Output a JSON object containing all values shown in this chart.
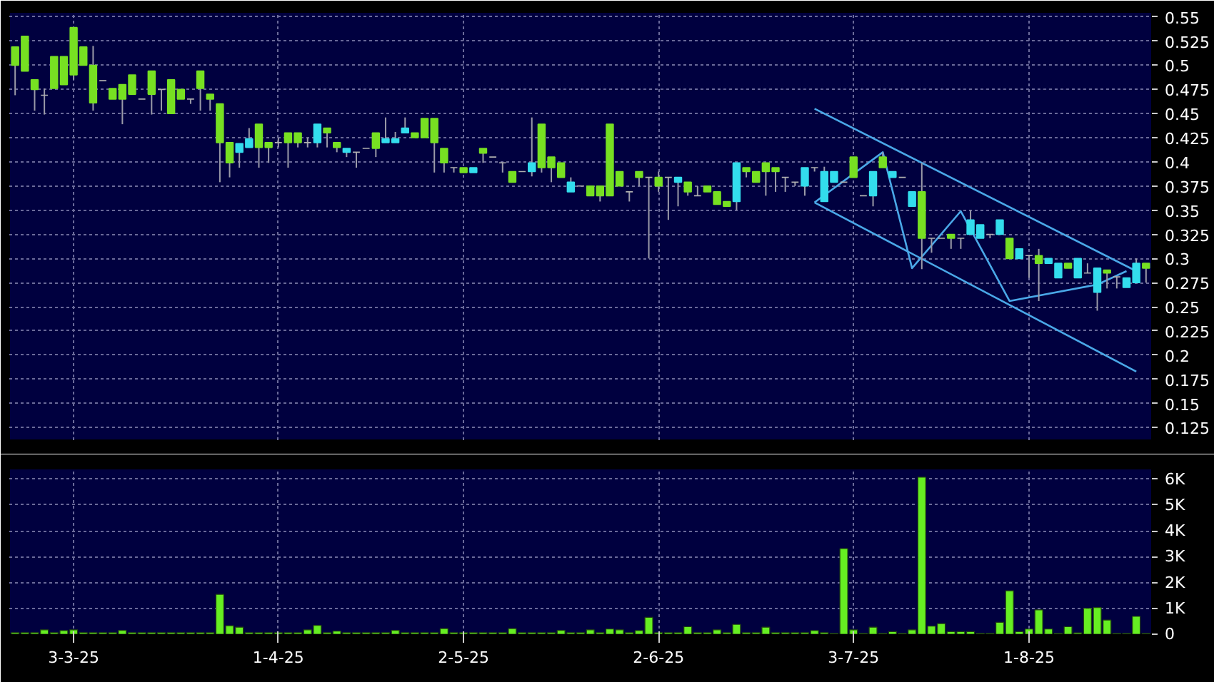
{
  "chart_data": [
    {
      "type": "candlestick",
      "categories": [
        null,
        null,
        null,
        null,
        null,
        null,
        null,
        null,
        null,
        null,
        null,
        null,
        null,
        null,
        null,
        null,
        null,
        null,
        null,
        null,
        null,
        null,
        null,
        null,
        null,
        null,
        null,
        null,
        null,
        null,
        null,
        null,
        null,
        null,
        null,
        null,
        null,
        null,
        null,
        null,
        null,
        null,
        null,
        null,
        null,
        null,
        null,
        null,
        null,
        null,
        null,
        null,
        null,
        null,
        null,
        null,
        null,
        null,
        null,
        null,
        null,
        null,
        null,
        null,
        null,
        null,
        null,
        null,
        null,
        null,
        null,
        null,
        null,
        null,
        null,
        null,
        null,
        null,
        null,
        null,
        null,
        null,
        null,
        null,
        null,
        null,
        null,
        null,
        null,
        null,
        null,
        null,
        null,
        null,
        null,
        null,
        null,
        null,
        null,
        null,
        null,
        null,
        null,
        null,
        null,
        null,
        null,
        null,
        null,
        null,
        null,
        null,
        null,
        null,
        null,
        null,
        null
      ],
      "ohlc": [
        [
          0.519,
          0.519,
          0.469,
          0.5
        ],
        [
          0.53,
          0.53,
          0.494,
          0.494
        ],
        [
          0.485,
          0.485,
          0.453,
          0.475
        ],
        [
          0.469,
          0.476,
          0.449,
          0.469
        ],
        [
          0.509,
          0.509,
          0.476,
          0.476
        ],
        [
          0.509,
          0.509,
          0.48,
          0.48
        ],
        [
          0.539,
          0.539,
          0.485,
          0.49
        ],
        [
          0.519,
          0.519,
          0.5,
          0.5
        ],
        [
          0.5,
          0.52,
          0.453,
          0.461
        ],
        [
          0.484,
          0.484,
          0.484,
          0.484
        ],
        [
          0.476,
          0.476,
          0.465,
          0.465
        ],
        [
          0.48,
          0.48,
          0.439,
          0.465
        ],
        [
          0.49,
          0.49,
          0.47,
          0.47
        ],
        [
          0.465,
          0.465,
          0.465,
          0.465
        ],
        [
          0.494,
          0.494,
          0.449,
          0.47
        ],
        [
          0.475,
          0.475,
          0.453,
          0.475
        ],
        [
          0.485,
          0.485,
          0.45,
          0.45
        ],
        [
          0.475,
          0.475,
          0.465,
          0.465
        ],
        [
          0.465,
          0.465,
          0.46,
          0.465
        ],
        [
          0.494,
          0.494,
          0.453,
          0.476
        ],
        [
          0.47,
          0.47,
          0.453,
          0.465
        ],
        [
          0.46,
          0.46,
          0.379,
          0.42
        ],
        [
          0.42,
          0.42,
          0.384,
          0.399
        ],
        [
          0.41,
          0.419,
          0.394,
          0.419
        ],
        [
          0.415,
          0.435,
          0.415,
          0.424
        ],
        [
          0.439,
          0.439,
          0.394,
          0.415
        ],
        [
          0.42,
          0.42,
          0.399,
          0.415
        ],
        [
          0.42,
          0.425,
          0.415,
          0.42
        ],
        [
          0.43,
          0.43,
          0.394,
          0.42
        ],
        [
          0.43,
          0.43,
          0.415,
          0.42
        ],
        [
          0.42,
          0.425,
          0.415,
          0.42
        ],
        [
          0.42,
          0.439,
          0.415,
          0.439
        ],
        [
          0.435,
          0.435,
          0.415,
          0.43
        ],
        [
          0.42,
          0.42,
          0.41,
          0.415
        ],
        [
          0.41,
          0.414,
          0.405,
          0.414
        ],
        [
          0.41,
          0.41,
          0.394,
          0.41
        ],
        [
          0.414,
          0.414,
          0.414,
          0.414
        ],
        [
          0.43,
          0.43,
          0.405,
          0.414
        ],
        [
          0.42,
          0.446,
          0.42,
          0.424
        ],
        [
          0.42,
          0.431,
          0.42,
          0.424
        ],
        [
          0.43,
          0.446,
          0.43,
          0.435
        ],
        [
          0.43,
          0.43,
          0.425,
          0.425
        ],
        [
          0.445,
          0.445,
          0.425,
          0.425
        ],
        [
          0.445,
          0.445,
          0.389,
          0.42
        ],
        [
          0.414,
          0.414,
          0.389,
          0.399
        ],
        [
          0.394,
          0.394,
          0.389,
          0.394
        ],
        [
          0.394,
          0.394,
          0.389,
          0.389
        ],
        [
          0.389,
          0.394,
          0.389,
          0.394
        ],
        [
          0.414,
          0.414,
          0.399,
          0.409
        ],
        [
          0.405,
          0.405,
          0.405,
          0.405
        ],
        [
          0.399,
          0.399,
          0.389,
          0.399
        ],
        [
          0.39,
          0.39,
          0.379,
          0.379
        ],
        [
          0.39,
          0.39,
          0.39,
          0.39
        ],
        [
          0.39,
          0.446,
          0.385,
          0.399
        ],
        [
          0.439,
          0.439,
          0.389,
          0.394
        ],
        [
          0.405,
          0.405,
          0.379,
          0.394
        ],
        [
          0.399,
          0.399,
          0.384,
          0.384
        ],
        [
          0.369,
          0.384,
          0.369,
          0.379
        ],
        [
          0.375,
          0.375,
          0.375,
          0.375
        ],
        [
          0.375,
          0.375,
          0.365,
          0.365
        ],
        [
          0.375,
          0.375,
          0.359,
          0.365
        ],
        [
          0.439,
          0.439,
          0.365,
          0.365
        ],
        [
          0.39,
          0.39,
          0.375,
          0.375
        ],
        [
          0.369,
          0.369,
          0.359,
          0.369
        ],
        [
          0.39,
          0.39,
          0.375,
          0.384
        ],
        [
          0.384,
          0.384,
          0.3,
          0.384
        ],
        [
          0.384,
          0.39,
          0.369,
          0.375
        ],
        [
          0.384,
          0.384,
          0.34,
          0.384
        ],
        [
          0.379,
          0.384,
          0.354,
          0.384
        ],
        [
          0.379,
          0.379,
          0.365,
          0.369
        ],
        [
          0.365,
          0.375,
          0.365,
          0.365
        ],
        [
          0.375,
          0.375,
          0.369,
          0.369
        ],
        [
          0.369,
          0.369,
          0.356,
          0.356
        ],
        [
          0.359,
          0.359,
          0.354,
          0.354
        ],
        [
          0.359,
          0.399,
          0.35,
          0.399
        ],
        [
          0.394,
          0.394,
          0.384,
          0.39
        ],
        [
          0.39,
          0.39,
          0.379,
          0.379
        ],
        [
          0.399,
          0.399,
          0.365,
          0.39
        ],
        [
          0.394,
          0.394,
          0.369,
          0.39
        ],
        [
          0.384,
          0.384,
          0.369,
          0.384
        ],
        [
          0.379,
          0.379,
          0.375,
          0.379
        ],
        [
          0.375,
          0.394,
          0.365,
          0.394
        ],
        [
          0.394,
          0.394,
          0.39,
          0.394
        ],
        [
          0.359,
          0.395,
          0.359,
          0.39
        ],
        [
          0.379,
          0.39,
          0.379,
          0.39
        ],
        [
          0.379,
          0.379,
          0.379,
          0.379
        ],
        [
          0.405,
          0.405,
          0.384,
          0.384
        ],
        [
          0.365,
          0.365,
          0.365,
          0.365
        ],
        [
          0.365,
          0.39,
          0.354,
          0.39
        ],
        [
          0.405,
          0.41,
          0.394,
          0.394
        ],
        [
          0.384,
          0.39,
          0.384,
          0.39
        ],
        [
          0.384,
          0.384,
          0.384,
          0.384
        ],
        [
          0.354,
          0.369,
          0.354,
          0.369
        ],
        [
          0.369,
          0.399,
          0.289,
          0.321
        ],
        [
          0.321,
          0.321,
          0.306,
          0.321
        ],
        [
          0.321,
          0.321,
          0.321,
          0.321
        ],
        [
          0.325,
          0.325,
          0.31,
          0.321
        ],
        [
          0.321,
          0.321,
          0.31,
          0.321
        ],
        [
          0.325,
          0.35,
          0.325,
          0.34
        ],
        [
          0.321,
          0.335,
          0.321,
          0.335
        ],
        [
          0.325,
          0.325,
          0.321,
          0.325
        ],
        [
          0.325,
          0.34,
          0.325,
          0.34
        ],
        [
          0.321,
          0.321,
          0.3,
          0.3
        ],
        [
          0.3,
          0.31,
          0.3,
          0.31
        ],
        [
          0.303,
          0.303,
          0.28,
          0.303
        ],
        [
          0.303,
          0.31,
          0.256,
          0.295
        ],
        [
          0.295,
          0.3,
          0.295,
          0.3
        ],
        [
          0.28,
          0.295,
          0.28,
          0.295
        ],
        [
          0.295,
          0.295,
          0.29,
          0.29
        ],
        [
          0.28,
          0.3,
          0.28,
          0.3
        ],
        [
          0.285,
          0.295,
          0.285,
          0.285
        ],
        [
          0.265,
          0.29,
          0.246,
          0.29
        ],
        [
          0.288,
          0.288,
          0.269,
          0.285
        ],
        [
          0.281,
          0.281,
          0.269,
          0.281
        ],
        [
          0.27,
          0.28,
          0.27,
          0.28
        ],
        [
          0.275,
          0.3,
          0.275,
          0.295
        ],
        [
          0.295,
          0.295,
          0.275,
          0.29
        ]
      ],
      "colors": [
        "#77e022",
        "#77e022",
        "#77e022",
        "#b0b0b0",
        "#77e022",
        "#77e022",
        "#77e022",
        "#77e022",
        "#77e022",
        "#b0b0b0",
        "#77e022",
        "#77e022",
        "#77e022",
        "#b0b0b0",
        "#77e022",
        "#b0b0b0",
        "#77e022",
        "#77e022",
        "#b0b0b0",
        "#77e022",
        "#77e022",
        "#77e022",
        "#77e022",
        "#33dded",
        "#33dded",
        "#77e022",
        "#77e022",
        "#b0b0b0",
        "#77e022",
        "#77e022",
        "#b0b0b0",
        "#33dded",
        "#77e022",
        "#77e022",
        "#33dded",
        "#b0b0b0",
        "#b0b0b0",
        "#77e022",
        "#33dded",
        "#33dded",
        "#33dded",
        "#77e022",
        "#77e022",
        "#77e022",
        "#77e022",
        "#b0b0b0",
        "#77e022",
        "#33dded",
        "#77e022",
        "#b0b0b0",
        "#b0b0b0",
        "#77e022",
        "#b0b0b0",
        "#33dded",
        "#77e022",
        "#77e022",
        "#77e022",
        "#33dded",
        "#b0b0b0",
        "#77e022",
        "#77e022",
        "#77e022",
        "#77e022",
        "#b0b0b0",
        "#77e022",
        "#b0b0b0",
        "#77e022",
        "#b0b0b0",
        "#33dded",
        "#77e022",
        "#b0b0b0",
        "#77e022",
        "#77e022",
        "#77e022",
        "#33dded",
        "#77e022",
        "#77e022",
        "#77e022",
        "#77e022",
        "#b0b0b0",
        "#b0b0b0",
        "#33dded",
        "#b0b0b0",
        "#33dded",
        "#33dded",
        "#b0b0b0",
        "#77e022",
        "#b0b0b0",
        "#33dded",
        "#77e022",
        "#33dded",
        "#b0b0b0",
        "#33dded",
        "#77e022",
        "#b0b0b0",
        "#b0b0b0",
        "#77e022",
        "#b0b0b0",
        "#33dded",
        "#33dded",
        "#b0b0b0",
        "#33dded",
        "#77e022",
        "#33dded",
        "#b0b0b0",
        "#77e022",
        "#33dded",
        "#33dded",
        "#77e022",
        "#33dded",
        "#b0b0b0",
        "#33dded",
        "#77e022",
        "#b0b0b0",
        "#33dded",
        "#33dded",
        "#77e022"
      ],
      "series": [
        {
          "type": "line",
          "color": "#4aa8e8",
          "values": [
            null,
            null,
            null,
            null,
            null,
            null,
            null,
            null,
            null,
            null,
            null,
            null,
            null,
            null,
            null,
            null,
            null,
            null,
            null,
            null,
            null,
            null,
            null,
            null,
            null,
            null,
            null,
            null,
            null,
            null,
            null,
            null,
            null,
            null,
            null,
            null,
            null,
            null,
            null,
            null,
            null,
            null,
            null,
            null,
            null,
            null,
            null,
            null,
            null,
            null,
            null,
            null,
            null,
            null,
            null,
            null,
            null,
            null,
            null,
            null,
            null,
            null,
            null,
            null,
            null,
            null,
            null,
            null,
            null,
            null,
            null,
            null,
            null,
            null,
            null,
            null,
            null,
            null,
            null,
            null,
            null,
            null,
            0.455,
            null,
            null,
            null,
            null,
            null,
            null,
            null,
            null,
            null,
            null,
            null,
            null,
            null,
            null,
            null,
            null,
            null,
            null,
            null,
            null,
            null,
            null,
            null,
            null,
            null,
            null,
            null,
            null,
            null,
            null,
            null,
            null,
            0.287,
            null
          ]
        },
        {
          "type": "line",
          "color": "#4aa8e8",
          "values": [
            null,
            null,
            null,
            null,
            null,
            null,
            null,
            null,
            null,
            null,
            null,
            null,
            null,
            null,
            null,
            null,
            null,
            null,
            null,
            null,
            null,
            null,
            null,
            null,
            null,
            null,
            null,
            null,
            null,
            null,
            null,
            null,
            null,
            null,
            null,
            null,
            null,
            null,
            null,
            null,
            null,
            null,
            null,
            null,
            null,
            null,
            null,
            null,
            null,
            null,
            null,
            null,
            null,
            null,
            null,
            null,
            null,
            null,
            null,
            null,
            null,
            null,
            null,
            null,
            null,
            null,
            null,
            null,
            null,
            null,
            null,
            null,
            null,
            null,
            null,
            null,
            null,
            null,
            null,
            null,
            null,
            null,
            0.358,
            null,
            null,
            null,
            null,
            null,
            null,
            null,
            null,
            null,
            null,
            null,
            null,
            null,
            null,
            null,
            null,
            null,
            null,
            null,
            null,
            null,
            null,
            null,
            null,
            null,
            null,
            null,
            null,
            null,
            null,
            null,
            null,
            0.183,
            null
          ]
        },
        {
          "type": "line",
          "color": "#4aa8e8",
          "values": [
            null,
            null,
            null,
            null,
            null,
            null,
            null,
            null,
            null,
            null,
            null,
            null,
            null,
            null,
            null,
            null,
            null,
            null,
            null,
            null,
            null,
            null,
            null,
            null,
            null,
            null,
            null,
            null,
            null,
            null,
            null,
            null,
            null,
            null,
            null,
            null,
            null,
            null,
            null,
            null,
            null,
            null,
            null,
            null,
            null,
            null,
            null,
            null,
            null,
            null,
            null,
            null,
            null,
            null,
            null,
            null,
            null,
            null,
            null,
            null,
            null,
            null,
            null,
            null,
            null,
            null,
            null,
            null,
            null,
            null,
            null,
            null,
            null,
            null,
            null,
            null,
            null,
            null,
            null,
            null,
            null,
            null,
            0.358,
            null,
            null,
            null,
            null,
            null,
            null,
            0.41,
            null,
            null,
            0.29,
            null,
            null,
            null,
            null,
            0.349,
            null,
            null,
            null,
            null,
            0.256,
            null,
            null,
            null,
            null,
            null,
            null,
            null,
            null,
            0.273,
            null,
            null,
            0.287,
            null,
            null
          ]
        }
      ],
      "ylim": [
        0.112,
        0.555
      ],
      "yticks": [
        0.125,
        0.15,
        0.175,
        0.2,
        0.225,
        0.25,
        0.275,
        0.3,
        0.325,
        0.35,
        0.375,
        0.4,
        0.425,
        0.45,
        0.475,
        0.5,
        0.525,
        0.55
      ],
      "grid": true,
      "tick_labels": "y"
    },
    {
      "type": "bar",
      "categories": [
        null,
        null,
        null,
        null,
        null,
        null,
        "3-3-25",
        null,
        null,
        null,
        null,
        null,
        null,
        null,
        null,
        null,
        null,
        null,
        null,
        null,
        null,
        null,
        null,
        null,
        null,
        null,
        null,
        "1-4-25",
        null,
        null,
        null,
        null,
        null,
        null,
        null,
        null,
        null,
        null,
        null,
        null,
        null,
        null,
        null,
        null,
        null,
        null,
        "2-5-25",
        null,
        null,
        null,
        null,
        null,
        null,
        null,
        null,
        null,
        null,
        null,
        null,
        null,
        null,
        null,
        null,
        null,
        null,
        null,
        "2-6-25",
        null,
        null,
        null,
        null,
        null,
        null,
        null,
        null,
        null,
        null,
        null,
        null,
        null,
        null,
        null,
        null,
        null,
        null,
        null,
        "3-7-25",
        null,
        null,
        null,
        null,
        null,
        null,
        null,
        null,
        null,
        null,
        null,
        null,
        null,
        null,
        null,
        null,
        null,
        "1-8-25",
        null,
        null,
        null,
        null,
        null,
        null,
        null,
        null,
        null,
        null,
        null,
        null
      ],
      "values": [
        0.06,
        0.06,
        0.06,
        0.17,
        0.06,
        0.14,
        0.17,
        0.06,
        0.06,
        0.06,
        0.06,
        0.15,
        0.06,
        0.06,
        0.06,
        0.06,
        0.06,
        0.06,
        0.06,
        0.06,
        0.06,
        1.54,
        0.33,
        0.27,
        0.06,
        0.06,
        0.06,
        0.06,
        0.06,
        0.06,
        0.17,
        0.34,
        0.06,
        0.12,
        0.06,
        0.06,
        0.06,
        0.06,
        0.06,
        0.15,
        0.06,
        0.06,
        0.06,
        0.06,
        0.22,
        0.06,
        0.06,
        0.06,
        0.06,
        0.06,
        0.06,
        0.22,
        0.06,
        0.06,
        0.06,
        0.06,
        0.15,
        0.06,
        0.06,
        0.17,
        0.06,
        0.2,
        0.17,
        0.06,
        0.14,
        0.65,
        0.06,
        0.06,
        0.06,
        0.29,
        0.06,
        0.06,
        0.17,
        0.06,
        0.38,
        0.06,
        0.06,
        0.27,
        0.06,
        0.06,
        0.06,
        0.06,
        0.14,
        0.06,
        0.03,
        3.31,
        0.17,
        0.03,
        0.27,
        0.03,
        0.1,
        0.03,
        0.17,
        6.07,
        0.31,
        0.41,
        0.1,
        0.1,
        0.1,
        0.03,
        0.03,
        0.46,
        1.68,
        0.1,
        0.2,
        0.94,
        0.2,
        0.03,
        0.29,
        0.05,
        1.0,
        1.03,
        0.55,
        0.03,
        0.03,
        0.69,
        0.03
      ],
      "color": "#66ee22",
      "ylim": [
        0,
        6.4
      ],
      "yticks": [
        0,
        {
          "value": 1,
          "label": "1K"
        },
        {
          "value": 2,
          "label": "2K"
        },
        {
          "value": 3,
          "label": "3K"
        },
        {
          "value": 4,
          "label": "4K"
        },
        {
          "value": 5,
          "label": "5K"
        },
        {
          "value": 6,
          "label": "6K"
        }
      ],
      "grid": true
    }
  ]
}
